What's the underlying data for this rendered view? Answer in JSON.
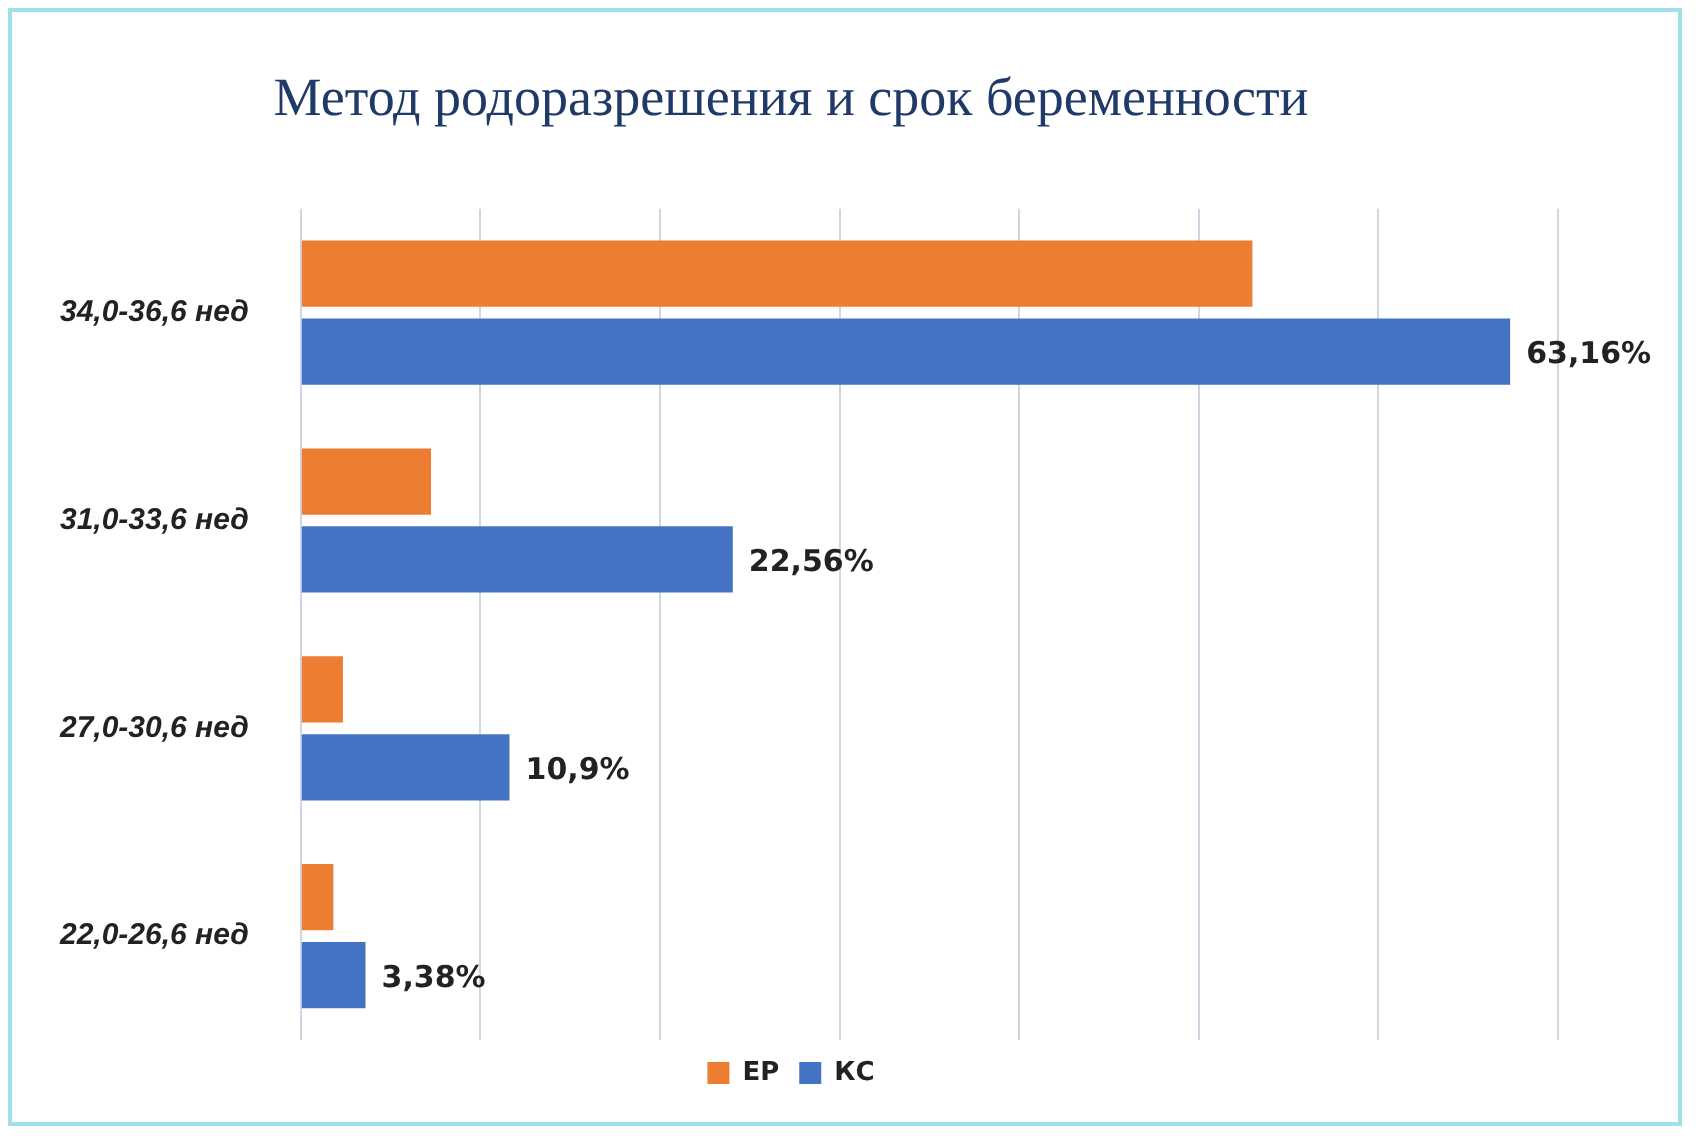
{
  "chart_data": {
    "type": "bar",
    "orientation": "horizontal",
    "title": "Метод родоразрешения и срок беременности",
    "categories": [
      "34,0-36,6 нед",
      "31,0-33,6 нед",
      "27,0-30,6 нед",
      "22,0-26,6 нед"
    ],
    "series": [
      {
        "name": "ЕР",
        "color": "#ed7d31",
        "values": [
          49.7,
          6.8,
          2.2,
          1.7
        ]
      },
      {
        "name": "КС",
        "color": "#4472c4",
        "values": [
          63.16,
          22.56,
          10.9,
          3.38
        ],
        "value_labels": [
          "63,16%",
          "22,56%",
          "10,9%",
          "3,38%"
        ]
      }
    ],
    "xlim": [
      0,
      65.66
    ],
    "xticks": [
      {
        "value": 0,
        "label": null
      },
      {
        "value": 9.38,
        "label": null
      },
      {
        "value": 18.76,
        "label": null
      },
      {
        "value": 28.14,
        "label": null
      },
      {
        "value": 37.52,
        "label": null
      },
      {
        "value": 46.9,
        "label": null
      },
      {
        "value": 56.28,
        "label": null
      },
      {
        "value": 65.66,
        "label": null
      }
    ],
    "grid": "x",
    "legend": "bottom",
    "tick_labels": "y"
  }
}
